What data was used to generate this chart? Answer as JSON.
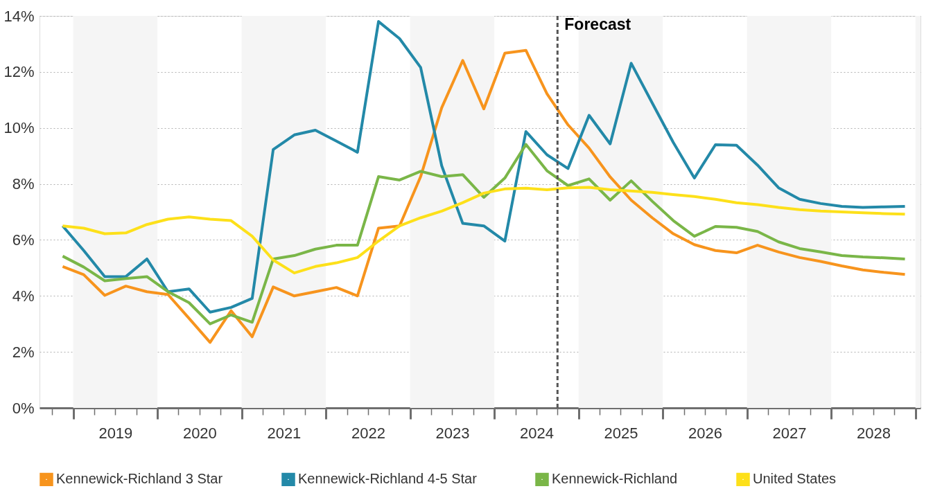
{
  "chart_data": {
    "type": "line",
    "x": [
      2018.875,
      2019.125,
      2019.375,
      2019.625,
      2019.875,
      2020.125,
      2020.375,
      2020.625,
      2020.875,
      2021.125,
      2021.375,
      2021.625,
      2021.875,
      2022.125,
      2022.375,
      2022.625,
      2022.875,
      2023.125,
      2023.375,
      2023.625,
      2023.875,
      2024.125,
      2024.375,
      2024.625,
      2024.875,
      2025.125,
      2025.375,
      2025.625,
      2025.875,
      2026.125,
      2026.375,
      2026.625,
      2026.875,
      2027.125,
      2027.375,
      2027.625,
      2027.875,
      2028.125,
      2028.375,
      2028.625,
      2028.875
    ],
    "series": [
      {
        "name": "Kennewick-Richland 3 Star",
        "color": "#f7941d",
        "values": [
          5.05,
          4.76,
          4.02,
          4.35,
          4.15,
          4.05,
          3.2,
          2.34,
          3.47,
          2.54,
          4.32,
          4.0,
          4.15,
          4.3,
          4.0,
          6.42,
          6.5,
          8.26,
          10.72,
          12.41,
          10.68,
          12.67,
          12.77,
          11.22,
          10.11,
          9.28,
          8.25,
          7.42,
          6.79,
          6.22,
          5.83,
          5.62,
          5.54,
          5.81,
          5.57,
          5.37,
          5.23,
          5.07,
          4.93,
          4.84,
          4.77
        ]
      },
      {
        "name": "Kennewick-Richland 4-5 Star",
        "color": "#2389a8",
        "values": [
          6.5,
          5.62,
          4.69,
          4.69,
          5.32,
          4.15,
          4.25,
          3.42,
          3.59,
          3.91,
          9.23,
          9.75,
          9.92,
          9.53,
          9.13,
          13.8,
          13.19,
          12.16,
          8.65,
          6.59,
          6.5,
          5.96,
          9.87,
          9.04,
          8.55,
          10.45,
          9.43,
          12.31,
          10.89,
          9.48,
          8.21,
          9.4,
          9.38,
          8.67,
          7.86,
          7.45,
          7.3,
          7.2,
          7.16,
          7.18,
          7.2
        ]
      },
      {
        "name": "Kennewick-Richland",
        "color": "#7ab648",
        "values": [
          5.42,
          5.03,
          4.54,
          4.62,
          4.69,
          4.15,
          3.76,
          3.0,
          3.32,
          3.06,
          5.32,
          5.44,
          5.67,
          5.81,
          5.81,
          8.26,
          8.14,
          8.45,
          8.26,
          8.33,
          7.52,
          8.21,
          9.41,
          8.47,
          7.94,
          8.18,
          7.42,
          8.11,
          7.38,
          6.69,
          6.13,
          6.48,
          6.45,
          6.3,
          5.93,
          5.69,
          5.57,
          5.44,
          5.39,
          5.36,
          5.32
        ]
      },
      {
        "name": "United States",
        "color": "#fde01a",
        "values": [
          6.5,
          6.42,
          6.22,
          6.25,
          6.55,
          6.74,
          6.82,
          6.74,
          6.69,
          6.13,
          5.28,
          4.82,
          5.05,
          5.18,
          5.37,
          5.96,
          6.5,
          6.79,
          7.03,
          7.33,
          7.67,
          7.82,
          7.85,
          7.79,
          7.86,
          7.88,
          7.79,
          7.75,
          7.7,
          7.62,
          7.55,
          7.45,
          7.33,
          7.26,
          7.16,
          7.08,
          7.03,
          7.0,
          6.97,
          6.94,
          6.92
        ]
      }
    ],
    "xlim": [
      2018.6,
      2029.06
    ],
    "xticks": [
      {
        "value": 2018.75,
        "label": null
      },
      {
        "value": 2019,
        "label": null
      },
      {
        "value": 2019.25,
        "label": null
      },
      {
        "value": 2019.5,
        "label": "2019"
      },
      {
        "value": 2019.75,
        "label": null
      },
      {
        "value": 2020,
        "label": null
      },
      {
        "value": 2020.25,
        "label": null
      },
      {
        "value": 2020.5,
        "label": "2020"
      },
      {
        "value": 2020.75,
        "label": null
      },
      {
        "value": 2021,
        "label": null
      },
      {
        "value": 2021.25,
        "label": null
      },
      {
        "value": 2021.5,
        "label": "2021"
      },
      {
        "value": 2021.75,
        "label": null
      },
      {
        "value": 2022,
        "label": null
      },
      {
        "value": 2022.25,
        "label": null
      },
      {
        "value": 2022.5,
        "label": "2022"
      },
      {
        "value": 2022.75,
        "label": null
      },
      {
        "value": 2023,
        "label": null
      },
      {
        "value": 2023.25,
        "label": null
      },
      {
        "value": 2023.5,
        "label": "2023"
      },
      {
        "value": 2023.75,
        "label": null
      },
      {
        "value": 2024,
        "label": null
      },
      {
        "value": 2024.25,
        "label": null
      },
      {
        "value": 2024.5,
        "label": "2024"
      },
      {
        "value": 2024.75,
        "label": null
      },
      {
        "value": 2025,
        "label": null
      },
      {
        "value": 2025.25,
        "label": null
      },
      {
        "value": 2025.5,
        "label": "2025"
      },
      {
        "value": 2025.75,
        "label": null
      },
      {
        "value": 2026,
        "label": null
      },
      {
        "value": 2026.25,
        "label": null
      },
      {
        "value": 2026.5,
        "label": "2026"
      },
      {
        "value": 2026.75,
        "label": null
      },
      {
        "value": 2027,
        "label": null
      },
      {
        "value": 2027.25,
        "label": null
      },
      {
        "value": 2027.5,
        "label": "2027"
      },
      {
        "value": 2027.75,
        "label": null
      },
      {
        "value": 2028,
        "label": null
      },
      {
        "value": 2028.25,
        "label": null
      },
      {
        "value": 2028.5,
        "label": "2028"
      },
      {
        "value": 2028.75,
        "label": null
      },
      {
        "value": 2029,
        "label": null
      }
    ],
    "ylim": [
      0,
      14
    ],
    "yticks": [
      {
        "value": 0,
        "label": "0%"
      },
      {
        "value": 2,
        "label": "2%"
      },
      {
        "value": 4,
        "label": "4%"
      },
      {
        "value": 6,
        "label": "6%"
      },
      {
        "value": 8,
        "label": "8%"
      },
      {
        "value": 10,
        "label": "10%"
      },
      {
        "value": 12,
        "label": "12%"
      },
      {
        "value": 14,
        "label": "14%"
      }
    ],
    "ref_lines": [
      {
        "axis": "x",
        "value": 2024.75,
        "label": "Forecast",
        "color": "#555555",
        "line_style": "dashed"
      }
    ],
    "bands": [
      {
        "axis": "x",
        "from": 2019,
        "to": 2020,
        "color": "#f5f5f5"
      },
      {
        "axis": "x",
        "from": 2021,
        "to": 2022,
        "color": "#f5f5f5"
      },
      {
        "axis": "x",
        "from": 2023,
        "to": 2024,
        "color": "#f5f5f5"
      },
      {
        "axis": "x",
        "from": 2025,
        "to": 2026,
        "color": "#f5f5f5"
      },
      {
        "axis": "x",
        "from": 2027,
        "to": 2028,
        "color": "#f5f5f5"
      },
      {
        "axis": "x",
        "from": 2029,
        "to": 2029.06,
        "color": "#f5f5f5"
      }
    ],
    "grid": "y",
    "legend": "bottom",
    "marker": "none",
    "line_style": "solid"
  }
}
